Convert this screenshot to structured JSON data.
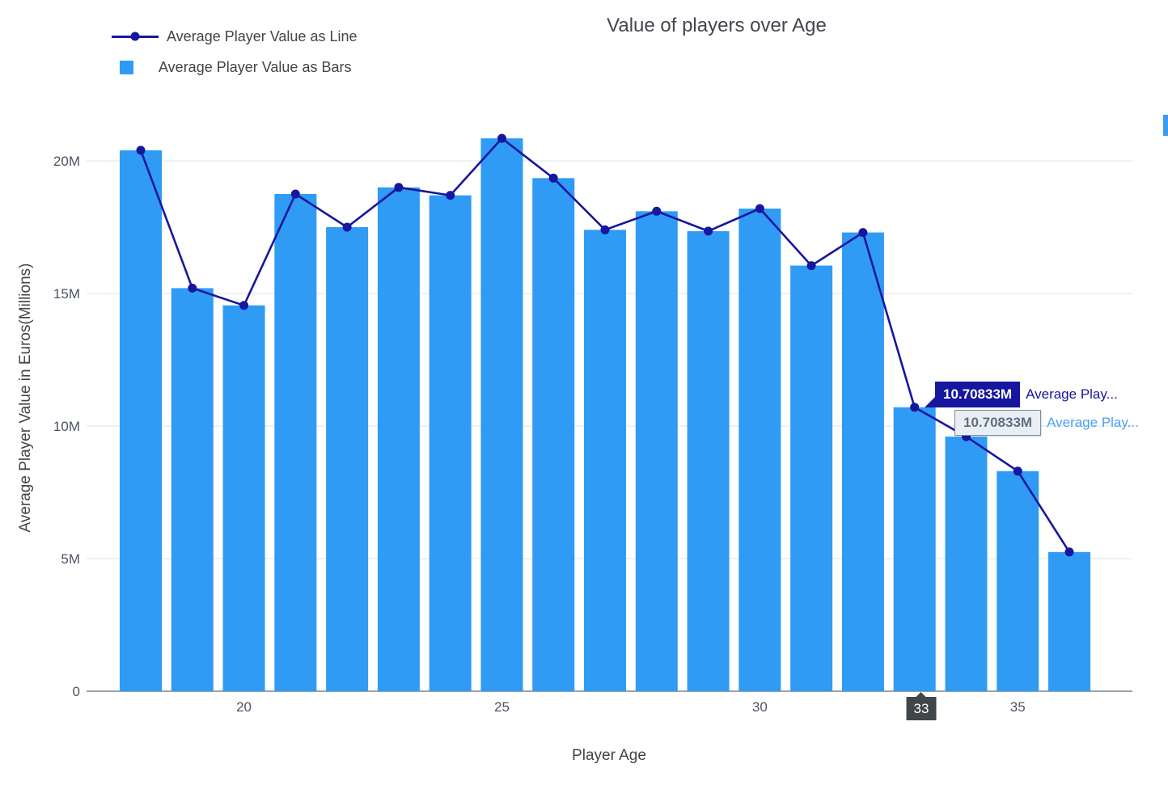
{
  "chart_data": {
    "type": "bar",
    "title": "Value of players over Age",
    "xlabel": "Player Age",
    "ylabel": "Average Player Value in Euros(Millions)",
    "x": [
      18,
      19,
      20,
      21,
      22,
      23,
      24,
      25,
      26,
      27,
      28,
      29,
      30,
      31,
      32,
      33,
      34,
      35,
      36
    ],
    "series": [
      {
        "name": "Average Player Value as Line",
        "type": "line",
        "color": "#16169e",
        "values": [
          20.4,
          15.2,
          14.55,
          18.75,
          17.5,
          19.0,
          18.7,
          20.85,
          19.35,
          17.4,
          18.1,
          17.35,
          18.2,
          16.05,
          17.3,
          10.70833,
          9.6,
          8.3,
          5.25
        ]
      },
      {
        "name": "Average Player Value as Bars",
        "type": "bar",
        "color": "#2f9bf5",
        "values": [
          20.4,
          15.2,
          14.55,
          18.75,
          17.5,
          19.0,
          18.7,
          20.85,
          19.35,
          17.4,
          18.1,
          17.35,
          18.2,
          16.05,
          17.3,
          10.70833,
          9.6,
          8.3,
          5.25
        ]
      }
    ],
    "ylim": [
      0,
      21.5
    ],
    "yticks": [
      0,
      5,
      10,
      15,
      20
    ],
    "ytick_labels": [
      "0",
      "5M",
      "10M",
      "15M",
      "20M"
    ],
    "xticks": [
      20,
      25,
      30,
      35
    ],
    "grid": true,
    "legend_position": "top-left"
  },
  "tooltips": {
    "line": {
      "value": "10.70833M",
      "name": "Average Play..."
    },
    "bar": {
      "value": "10.70833M",
      "name": "Average Play..."
    },
    "x_axis_tag": "33"
  },
  "colors": {
    "bar": "#2f9bf5",
    "line": "#16169e",
    "grid": "#e8edf1",
    "axis_text": "#4c5564",
    "x_tag_bg": "#41464b",
    "tooltip_bar_bg": "#e9eef4"
  }
}
